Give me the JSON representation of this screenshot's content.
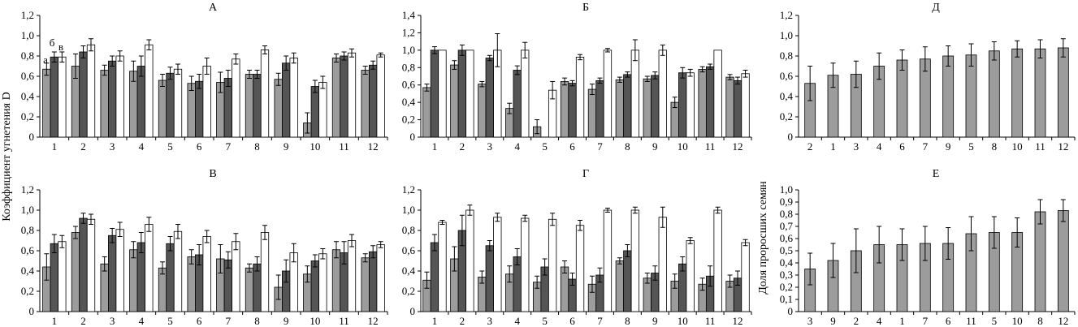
{
  "y_axis_label_left": "Коэффициент угнетения D",
  "y_axis_label_right": "Доля проросших семян",
  "bar_annotations": [
    "а",
    "б",
    "в"
  ],
  "colors": {
    "a": "#9c9c9c",
    "b": "#555555",
    "c": "#ffffff",
    "single": "#9c9c9c",
    "axis": "#000000"
  },
  "chart_data": [
    {
      "type": "bar",
      "title": "А",
      "categories": [
        "1",
        "2",
        "3",
        "4",
        "5",
        "6",
        "7",
        "8",
        "9",
        "10",
        "11",
        "12"
      ],
      "ylim": [
        0,
        1.2
      ],
      "yticks": [
        "0",
        "0,2",
        "0,4",
        "0,6",
        "0,8",
        "1,0",
        "1,2"
      ],
      "series": [
        {
          "values": [
            0.67,
            0.7,
            0.66,
            0.65,
            0.56,
            0.53,
            0.54,
            0.62,
            0.57,
            0.14,
            0.78,
            0.66
          ],
          "errors": [
            0.06,
            0.12,
            0.05,
            0.1,
            0.06,
            0.07,
            0.1,
            0.04,
            0.06,
            0.1,
            0.04,
            0.04
          ]
        },
        {
          "values": [
            0.79,
            0.84,
            0.75,
            0.7,
            0.63,
            0.55,
            0.58,
            0.62,
            0.73,
            0.5,
            0.8,
            0.71
          ],
          "errors": [
            0.05,
            0.06,
            0.05,
            0.1,
            0.06,
            0.07,
            0.08,
            0.04,
            0.07,
            0.06,
            0.04,
            0.04
          ]
        },
        {
          "values": [
            0.79,
            0.91,
            0.8,
            0.91,
            0.67,
            0.7,
            0.77,
            0.86,
            0.78,
            0.54,
            0.83,
            0.81
          ],
          "errors": [
            0.05,
            0.06,
            0.05,
            0.05,
            0.05,
            0.08,
            0.05,
            0.04,
            0.05,
            0.06,
            0.04,
            0.02
          ]
        }
      ]
    },
    {
      "type": "bar",
      "title": "Б",
      "categories": [
        "1",
        "2",
        "3",
        "4",
        "5",
        "6",
        "7",
        "8",
        "9",
        "10",
        "11",
        "12"
      ],
      "ylim": [
        0,
        1.4
      ],
      "yticks": [
        "0",
        "0,2",
        "0,4",
        "0,6",
        "0,8",
        "1,0",
        "1,2",
        "1,4"
      ],
      "series": [
        {
          "values": [
            0.57,
            0.83,
            0.61,
            0.33,
            0.12,
            0.64,
            0.55,
            0.66,
            0.67,
            0.4,
            0.78,
            0.69
          ],
          "errors": [
            0.04,
            0.05,
            0.03,
            0.06,
            0.08,
            0.04,
            0.06,
            0.03,
            0.03,
            0.06,
            0.03,
            0.03
          ]
        },
        {
          "values": [
            1.0,
            1.0,
            0.91,
            0.77,
            0.0,
            0.62,
            0.65,
            0.72,
            0.71,
            0.74,
            0.81,
            0.65
          ],
          "errors": [
            0.04,
            0.06,
            0.03,
            0.05,
            0.0,
            0.03,
            0.03,
            0.03,
            0.04,
            0.06,
            0.03,
            0.04
          ]
        },
        {
          "values": [
            1.0,
            1.0,
            1.0,
            1.0,
            0.54,
            0.92,
            1.0,
            1.0,
            1.0,
            0.74,
            1.0,
            0.73
          ],
          "errors": [
            0.0,
            0.0,
            0.19,
            0.09,
            0.1,
            0.03,
            0.02,
            0.12,
            0.06,
            0.04,
            0.0,
            0.04
          ]
        }
      ]
    },
    {
      "type": "bar",
      "title": "Д",
      "categories": [
        "2",
        "1",
        "3",
        "4",
        "6",
        "7",
        "9",
        "5",
        "8",
        "10",
        "11",
        "12"
      ],
      "ylim": [
        0,
        1.2
      ],
      "yticks": [
        "0",
        "0,2",
        "0,4",
        "0,6",
        "0,8",
        "1,0",
        "1,2"
      ],
      "series": [
        {
          "values": [
            0.53,
            0.61,
            0.62,
            0.7,
            0.76,
            0.77,
            0.8,
            0.81,
            0.85,
            0.87,
            0.87,
            0.88
          ],
          "errors": [
            0.17,
            0.12,
            0.13,
            0.13,
            0.1,
            0.12,
            0.1,
            0.11,
            0.09,
            0.08,
            0.09,
            0.09
          ]
        }
      ]
    },
    {
      "type": "bar",
      "title": "В",
      "categories": [
        "1",
        "2",
        "3",
        "4",
        "5",
        "6",
        "7",
        "8",
        "9",
        "10",
        "11",
        "12"
      ],
      "ylim": [
        0,
        1.2
      ],
      "yticks": [
        "0",
        "0,2",
        "0,4",
        "0,6",
        "0,8",
        "1,0",
        "1,2"
      ],
      "series": [
        {
          "values": [
            0.44,
            0.78,
            0.47,
            0.61,
            0.43,
            0.54,
            0.52,
            0.43,
            0.24,
            0.37,
            0.61,
            0.53
          ],
          "errors": [
            0.13,
            0.06,
            0.07,
            0.08,
            0.06,
            0.07,
            0.14,
            0.04,
            0.12,
            0.08,
            0.08,
            0.04
          ]
        },
        {
          "values": [
            0.67,
            0.92,
            0.75,
            0.68,
            0.67,
            0.56,
            0.51,
            0.47,
            0.4,
            0.5,
            0.58,
            0.59
          ],
          "errors": [
            0.09,
            0.05,
            0.07,
            0.1,
            0.07,
            0.1,
            0.08,
            0.07,
            0.11,
            0.06,
            0.11,
            0.06
          ]
        },
        {
          "values": [
            0.69,
            0.91,
            0.81,
            0.86,
            0.79,
            0.74,
            0.69,
            0.78,
            0.58,
            0.57,
            0.7,
            0.66
          ],
          "errors": [
            0.06,
            0.05,
            0.07,
            0.07,
            0.07,
            0.06,
            0.08,
            0.07,
            0.09,
            0.05,
            0.06,
            0.03
          ]
        }
      ]
    },
    {
      "type": "bar",
      "title": "Г",
      "categories": [
        "1",
        "2",
        "3",
        "4",
        "5",
        "6",
        "7",
        "8",
        "9",
        "10",
        "11",
        "12"
      ],
      "ylim": [
        0,
        1.2
      ],
      "yticks": [
        "0",
        "0,2",
        "0,4",
        "0,6",
        "0,8",
        "1,0",
        "1,2"
      ],
      "series": [
        {
          "values": [
            0.31,
            0.52,
            0.34,
            0.37,
            0.29,
            0.44,
            0.27,
            0.5,
            0.33,
            0.3,
            0.27,
            0.3
          ],
          "errors": [
            0.08,
            0.12,
            0.06,
            0.08,
            0.06,
            0.06,
            0.08,
            0.03,
            0.05,
            0.07,
            0.06,
            0.06
          ]
        },
        {
          "values": [
            0.68,
            0.8,
            0.65,
            0.54,
            0.44,
            0.32,
            0.36,
            0.6,
            0.38,
            0.47,
            0.35,
            0.33
          ],
          "errors": [
            0.08,
            0.15,
            0.05,
            0.08,
            0.08,
            0.06,
            0.07,
            0.06,
            0.07,
            0.07,
            0.1,
            0.07
          ]
        },
        {
          "values": [
            0.88,
            1.0,
            0.93,
            0.92,
            0.91,
            0.85,
            1.0,
            1.0,
            0.93,
            0.7,
            1.0,
            0.68
          ],
          "errors": [
            0.02,
            0.05,
            0.04,
            0.03,
            0.06,
            0.05,
            0.02,
            0.03,
            0.1,
            0.03,
            0.03,
            0.03
          ]
        }
      ]
    },
    {
      "type": "bar",
      "title": "Е",
      "categories": [
        "3",
        "9",
        "2",
        "4",
        "1",
        "7",
        "6",
        "11",
        "5",
        "10",
        "8",
        "12"
      ],
      "ylim": [
        0,
        1.0
      ],
      "yticks": [
        "0",
        "0,1",
        "0,2",
        "0,3",
        "0,4",
        "0,5",
        "0,6",
        "0,7",
        "0,8",
        "0,9",
        "1,0"
      ],
      "series": [
        {
          "values": [
            0.35,
            0.42,
            0.5,
            0.55,
            0.55,
            0.56,
            0.56,
            0.64,
            0.65,
            0.65,
            0.82,
            0.83
          ],
          "errors": [
            0.13,
            0.14,
            0.18,
            0.15,
            0.13,
            0.14,
            0.13,
            0.14,
            0.13,
            0.12,
            0.1,
            0.09
          ]
        }
      ]
    }
  ]
}
